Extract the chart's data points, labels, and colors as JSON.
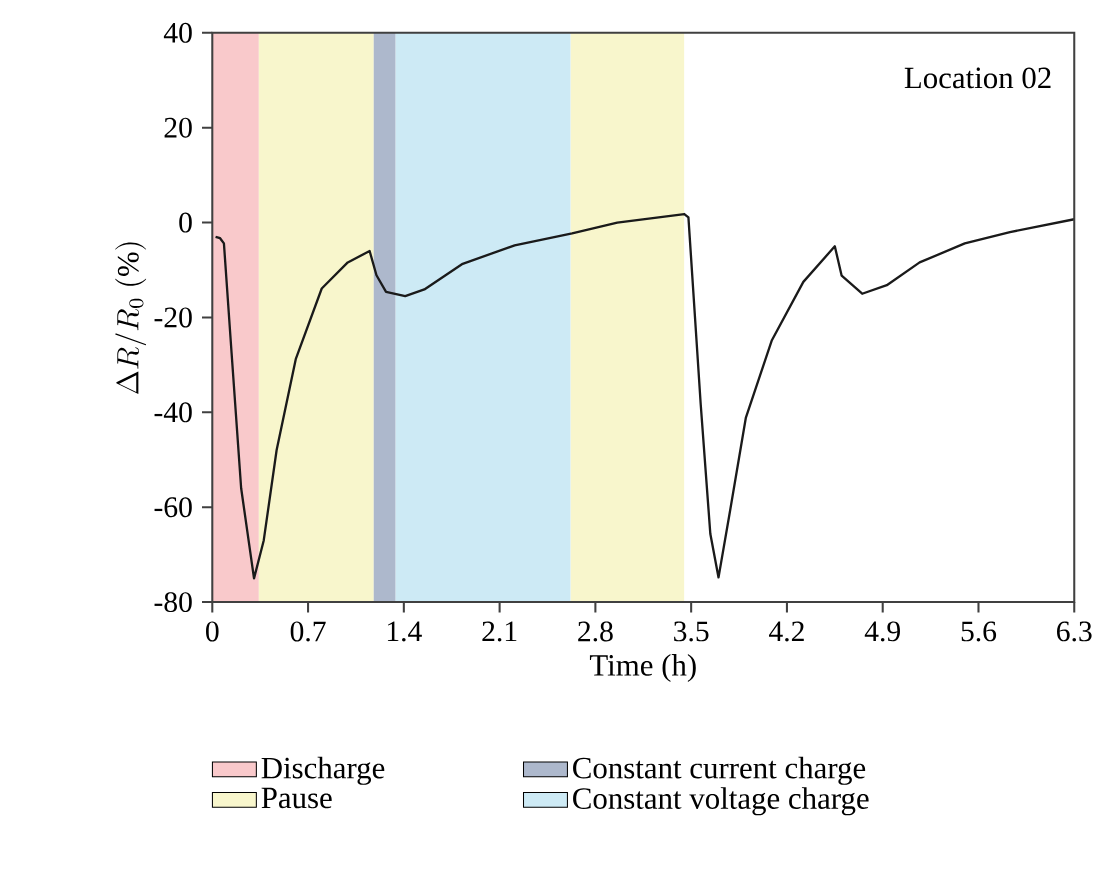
{
  "chart_data": {
    "type": "line",
    "xlabel": "Time (h)",
    "ylabel": "\\Delta R/R_{0}\\ (\\%)",
    "annotations": [
      "Location 02"
    ],
    "xlim": [
      0,
      6.3
    ],
    "ylim": [
      -80,
      40
    ],
    "xticks": [
      0,
      0.7,
      1.4,
      2.1,
      2.8,
      3.5,
      4.2,
      4.9,
      5.6,
      6.3
    ],
    "yticks": [
      -80,
      -60,
      -40,
      -20,
      0,
      20,
      40
    ],
    "grid": false,
    "legend": "bottom",
    "marker": "none",
    "line_style": "solid",
    "bands": [
      {
        "axis": "x",
        "from": 0,
        "to": 0.34,
        "label": "Discharge",
        "color": "#f9c9cb"
      },
      {
        "axis": "x",
        "from": 0.34,
        "to": 1.18,
        "label": "Pause",
        "color": "#f8f6cc"
      },
      {
        "axis": "x",
        "from": 1.18,
        "to": 1.34,
        "label": "Constant current charge",
        "color": "#adb8cc"
      },
      {
        "axis": "x",
        "from": 1.34,
        "to": 2.62,
        "label": "Constant voltage charge",
        "color": "#cdeaf5"
      },
      {
        "axis": "x",
        "from": 2.62,
        "to": 3.45,
        "color": "#f8f6cc"
      }
    ],
    "series": [
      {
        "color": "#1a1a1a",
        "x": [
          0.024,
          0.057,
          0.085,
          0.141,
          0.211,
          0.305,
          0.376,
          0.47,
          0.61,
          0.8,
          0.99,
          1.15,
          1.2,
          1.27,
          1.41,
          1.55,
          1.83,
          2.21,
          2.63,
          2.96,
          3.45,
          3.48,
          3.57,
          3.64,
          3.7,
          3.78,
          3.9,
          4.09,
          4.32,
          4.55,
          4.6,
          4.75,
          4.93,
          5.17,
          5.5,
          5.83,
          6.3
        ],
        "values": [
          -3.0,
          -3.3,
          -4.4,
          -27.5,
          -56,
          -75,
          -67,
          -48,
          -28.8,
          -13.9,
          -8.4,
          -6.0,
          -11.1,
          -14.6,
          -15.5,
          -14.1,
          -8.7,
          -4.8,
          -2.3,
          0,
          1.8,
          1.1,
          -38.4,
          -65.6,
          -74.8,
          -61.5,
          -41.1,
          -24.8,
          -12.5,
          -5.0,
          -11.2,
          -15.0,
          -13.2,
          -8.4,
          -4.4,
          -2.0,
          0.7
        ]
      }
    ]
  }
}
